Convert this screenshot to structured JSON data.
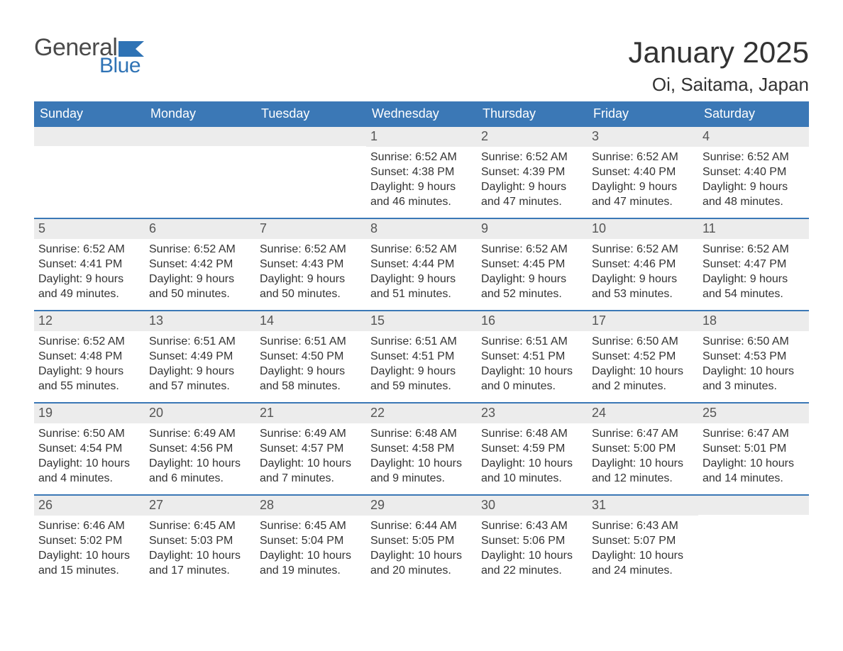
{
  "logo": {
    "general": "General",
    "blue": "Blue",
    "flag_color": "#2f73b5"
  },
  "header": {
    "month_title": "January 2025",
    "location": "Oi, Saitama, Japan"
  },
  "colors": {
    "header_bg": "#3b78b6",
    "header_text": "#ffffff",
    "daynum_bg": "#ececec",
    "daynum_text": "#555555",
    "body_text": "#333333",
    "week_border": "#3b78b6",
    "page_bg": "#ffffff"
  },
  "typography": {
    "month_title_size": 42,
    "location_size": 26,
    "weekday_size": 18,
    "daynum_size": 18,
    "content_size": 16,
    "font_family": "Arial"
  },
  "layout": {
    "columns": 7,
    "cell_min_height": 128
  },
  "weekdays": [
    "Sunday",
    "Monday",
    "Tuesday",
    "Wednesday",
    "Thursday",
    "Friday",
    "Saturday"
  ],
  "weeks": [
    [
      {
        "empty": true
      },
      {
        "empty": true
      },
      {
        "empty": true
      },
      {
        "day": "1",
        "sunrise": "Sunrise: 6:52 AM",
        "sunset": "Sunset: 4:38 PM",
        "daylight": "Daylight: 9 hours and 46 minutes."
      },
      {
        "day": "2",
        "sunrise": "Sunrise: 6:52 AM",
        "sunset": "Sunset: 4:39 PM",
        "daylight": "Daylight: 9 hours and 47 minutes."
      },
      {
        "day": "3",
        "sunrise": "Sunrise: 6:52 AM",
        "sunset": "Sunset: 4:40 PM",
        "daylight": "Daylight: 9 hours and 47 minutes."
      },
      {
        "day": "4",
        "sunrise": "Sunrise: 6:52 AM",
        "sunset": "Sunset: 4:40 PM",
        "daylight": "Daylight: 9 hours and 48 minutes."
      }
    ],
    [
      {
        "day": "5",
        "sunrise": "Sunrise: 6:52 AM",
        "sunset": "Sunset: 4:41 PM",
        "daylight": "Daylight: 9 hours and 49 minutes."
      },
      {
        "day": "6",
        "sunrise": "Sunrise: 6:52 AM",
        "sunset": "Sunset: 4:42 PM",
        "daylight": "Daylight: 9 hours and 50 minutes."
      },
      {
        "day": "7",
        "sunrise": "Sunrise: 6:52 AM",
        "sunset": "Sunset: 4:43 PM",
        "daylight": "Daylight: 9 hours and 50 minutes."
      },
      {
        "day": "8",
        "sunrise": "Sunrise: 6:52 AM",
        "sunset": "Sunset: 4:44 PM",
        "daylight": "Daylight: 9 hours and 51 minutes."
      },
      {
        "day": "9",
        "sunrise": "Sunrise: 6:52 AM",
        "sunset": "Sunset: 4:45 PM",
        "daylight": "Daylight: 9 hours and 52 minutes."
      },
      {
        "day": "10",
        "sunrise": "Sunrise: 6:52 AM",
        "sunset": "Sunset: 4:46 PM",
        "daylight": "Daylight: 9 hours and 53 minutes."
      },
      {
        "day": "11",
        "sunrise": "Sunrise: 6:52 AM",
        "sunset": "Sunset: 4:47 PM",
        "daylight": "Daylight: 9 hours and 54 minutes."
      }
    ],
    [
      {
        "day": "12",
        "sunrise": "Sunrise: 6:52 AM",
        "sunset": "Sunset: 4:48 PM",
        "daylight": "Daylight: 9 hours and 55 minutes."
      },
      {
        "day": "13",
        "sunrise": "Sunrise: 6:51 AM",
        "sunset": "Sunset: 4:49 PM",
        "daylight": "Daylight: 9 hours and 57 minutes."
      },
      {
        "day": "14",
        "sunrise": "Sunrise: 6:51 AM",
        "sunset": "Sunset: 4:50 PM",
        "daylight": "Daylight: 9 hours and 58 minutes."
      },
      {
        "day": "15",
        "sunrise": "Sunrise: 6:51 AM",
        "sunset": "Sunset: 4:51 PM",
        "daylight": "Daylight: 9 hours and 59 minutes."
      },
      {
        "day": "16",
        "sunrise": "Sunrise: 6:51 AM",
        "sunset": "Sunset: 4:51 PM",
        "daylight": "Daylight: 10 hours and 0 minutes."
      },
      {
        "day": "17",
        "sunrise": "Sunrise: 6:50 AM",
        "sunset": "Sunset: 4:52 PM",
        "daylight": "Daylight: 10 hours and 2 minutes."
      },
      {
        "day": "18",
        "sunrise": "Sunrise: 6:50 AM",
        "sunset": "Sunset: 4:53 PM",
        "daylight": "Daylight: 10 hours and 3 minutes."
      }
    ],
    [
      {
        "day": "19",
        "sunrise": "Sunrise: 6:50 AM",
        "sunset": "Sunset: 4:54 PM",
        "daylight": "Daylight: 10 hours and 4 minutes."
      },
      {
        "day": "20",
        "sunrise": "Sunrise: 6:49 AM",
        "sunset": "Sunset: 4:56 PM",
        "daylight": "Daylight: 10 hours and 6 minutes."
      },
      {
        "day": "21",
        "sunrise": "Sunrise: 6:49 AM",
        "sunset": "Sunset: 4:57 PM",
        "daylight": "Daylight: 10 hours and 7 minutes."
      },
      {
        "day": "22",
        "sunrise": "Sunrise: 6:48 AM",
        "sunset": "Sunset: 4:58 PM",
        "daylight": "Daylight: 10 hours and 9 minutes."
      },
      {
        "day": "23",
        "sunrise": "Sunrise: 6:48 AM",
        "sunset": "Sunset: 4:59 PM",
        "daylight": "Daylight: 10 hours and 10 minutes."
      },
      {
        "day": "24",
        "sunrise": "Sunrise: 6:47 AM",
        "sunset": "Sunset: 5:00 PM",
        "daylight": "Daylight: 10 hours and 12 minutes."
      },
      {
        "day": "25",
        "sunrise": "Sunrise: 6:47 AM",
        "sunset": "Sunset: 5:01 PM",
        "daylight": "Daylight: 10 hours and 14 minutes."
      }
    ],
    [
      {
        "day": "26",
        "sunrise": "Sunrise: 6:46 AM",
        "sunset": "Sunset: 5:02 PM",
        "daylight": "Daylight: 10 hours and 15 minutes."
      },
      {
        "day": "27",
        "sunrise": "Sunrise: 6:45 AM",
        "sunset": "Sunset: 5:03 PM",
        "daylight": "Daylight: 10 hours and 17 minutes."
      },
      {
        "day": "28",
        "sunrise": "Sunrise: 6:45 AM",
        "sunset": "Sunset: 5:04 PM",
        "daylight": "Daylight: 10 hours and 19 minutes."
      },
      {
        "day": "29",
        "sunrise": "Sunrise: 6:44 AM",
        "sunset": "Sunset: 5:05 PM",
        "daylight": "Daylight: 10 hours and 20 minutes."
      },
      {
        "day": "30",
        "sunrise": "Sunrise: 6:43 AM",
        "sunset": "Sunset: 5:06 PM",
        "daylight": "Daylight: 10 hours and 22 minutes."
      },
      {
        "day": "31",
        "sunrise": "Sunrise: 6:43 AM",
        "sunset": "Sunset: 5:07 PM",
        "daylight": "Daylight: 10 hours and 24 minutes."
      },
      {
        "empty": true
      }
    ]
  ]
}
